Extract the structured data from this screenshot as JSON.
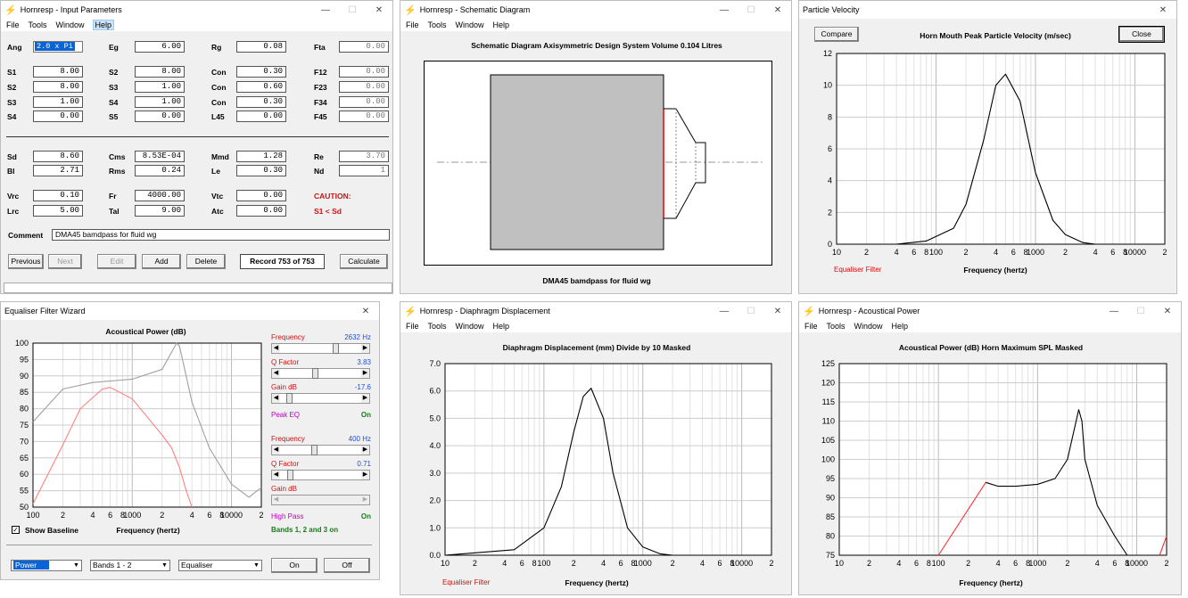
{
  "input_params": {
    "title": "Hornresp - Input Parameters",
    "menu": [
      "File",
      "Tools",
      "Window",
      "Help"
    ],
    "rows": [
      {
        "k": "Ang",
        "v": "2.0 x Pi",
        "k2": "Eg",
        "v2": "6.00",
        "k3": "Rg",
        "v3": "0.08",
        "k4": "Fta",
        "v4": "0.00"
      },
      {
        "k": "S1",
        "v": "8.00",
        "k2": "S2",
        "v2": "8.00",
        "k3": "Con",
        "v3": "0.30",
        "k4": "F12",
        "v4": "0.00"
      },
      {
        "k": "S2",
        "v": "8.00",
        "k2": "S3",
        "v2": "1.00",
        "k3": "Con",
        "v3": "0.60",
        "k4": "F23",
        "v4": "0.00"
      },
      {
        "k": "S3",
        "v": "1.00",
        "k2": "S4",
        "v2": "1.00",
        "k3": "Con",
        "v3": "0.30",
        "k4": "F34",
        "v4": "0.00"
      },
      {
        "k": "S4",
        "v": "0.00",
        "k2": "S5",
        "v2": "0.00",
        "k3": "L45",
        "v3": "0.00",
        "k4": "F45",
        "v4": "0.00"
      },
      {
        "k": "Sd",
        "v": "8.60",
        "k2": "Cms",
        "v2": "8.53E-04",
        "k3": "Mmd",
        "v3": "1.28",
        "k4": "Re",
        "v4": "3.70"
      },
      {
        "k": "Bl",
        "v": "2.71",
        "k2": "Rms",
        "v2": "0.24",
        "k3": "Le",
        "v3": "0.30",
        "k4": "Nd",
        "v4": "1"
      },
      {
        "k": "Vrc",
        "v": "0.10",
        "k2": "Fr",
        "v2": "4000.00",
        "k3": "Vtc",
        "v3": "0.00",
        "k4": "caution",
        "v4": "CAUTION:"
      },
      {
        "k": "Lrc",
        "v": "5.00",
        "k2": "Tal",
        "v2": "9.00",
        "k3": "Atc",
        "v3": "0.00",
        "k4": "caution2",
        "v4": "S1 < Sd"
      }
    ],
    "comment_label": "Comment",
    "comment": "DMA45 bamdpass for fluid wg",
    "buttons": {
      "previous": "Previous",
      "next": "Next",
      "edit": "Edit",
      "add": "Add",
      "delete": "Delete",
      "record": "Record 753 of 753",
      "calculate": "Calculate"
    }
  },
  "schematic": {
    "title": "Hornresp - Schematic Diagram",
    "menu": [
      "File",
      "Tools",
      "Window",
      "Help"
    ],
    "heading": "Schematic Diagram   Axisymmetric Design   System Volume 0.104 Litres",
    "caption": "DMA45 bamdpass for fluid wg"
  },
  "particle_velocity": {
    "title": "Particle Velocity",
    "compare": "Compare",
    "close": "Close",
    "heading": "Horn Mouth Peak Particle Velocity (m/sec)",
    "eq_label": "Equaliser Filter",
    "xlabel": "Frequency (hertz)"
  },
  "eq_wizard": {
    "title": "Equaliser Filter Wizard",
    "heading": "Acoustical Power (dB)",
    "xlabel": "Frequency (hertz)",
    "baseline_label": "Show Baseline",
    "band1": {
      "freq_label": "Frequency",
      "freq_value": "2632 Hz",
      "q_label": "Q Factor",
      "q_value": "3.83",
      "gain_label": "Gain  dB",
      "gain_value": "-17.6",
      "type": "Peak EQ",
      "state": "On"
    },
    "band2": {
      "freq_label": "Frequency",
      "freq_value": "400 Hz",
      "q_label": "Q Factor",
      "q_value": "0.71",
      "gain_label": "Gain  dB",
      "type": "High Pass",
      "state": "On"
    },
    "bands_status": "Bands 1, 2 and 3 on",
    "select1": "Power",
    "select2": "Bands 1 - 2",
    "select3": "Equaliser",
    "on": "On",
    "off": "Off"
  },
  "diaphragm": {
    "title": "Hornresp - Diaphragm Displacement",
    "menu": [
      "File",
      "Tools",
      "Window",
      "Help"
    ],
    "heading": "Diaphragm Displacement (mm)   Divide by 10   Masked",
    "eq_label": "Equaliser Filter",
    "xlabel": "Frequency (hertz)"
  },
  "acoustic": {
    "title": "Hornresp - Acoustical Power",
    "menu": [
      "File",
      "Tools",
      "Window",
      "Help"
    ],
    "heading": "Acoustical Power (dB)   Horn   Maximum SPL   Masked",
    "xlabel": "Frequency (hertz)"
  },
  "chart_data": [
    {
      "type": "line",
      "title": "Horn Mouth Peak Particle Velocity (m/sec)",
      "xlabel": "Frequency (hertz)",
      "xscale": "log",
      "xlim": [
        10,
        20000
      ],
      "ylim": [
        0,
        12
      ],
      "yticks": [
        0,
        2,
        4,
        6,
        8,
        10,
        12
      ],
      "xticklabels": [
        "10",
        "2",
        "4",
        "6",
        "8",
        "100",
        "2",
        "4",
        "6",
        "8",
        "1000",
        "2",
        "4",
        "6",
        "8",
        "10000",
        "2"
      ],
      "series": [
        {
          "x": [
            40,
            80,
            150,
            200,
            300,
            400,
            500,
            700,
            1000,
            1500,
            2000,
            3000,
            4000
          ],
          "y": [
            0,
            0.2,
            1,
            2.5,
            6.5,
            10,
            10.7,
            9,
            4.5,
            1.5,
            0.6,
            0.1,
            0
          ]
        }
      ]
    },
    {
      "type": "line",
      "title": "Acoustical Power (dB)",
      "xlabel": "Frequency (hertz)",
      "xscale": "log",
      "xlim": [
        100,
        20000
      ],
      "ylim": [
        50,
        100
      ],
      "yticks": [
        50,
        55,
        60,
        65,
        70,
        75,
        80,
        85,
        90,
        95,
        100
      ],
      "xticklabels": [
        "100",
        "2",
        "4",
        "6",
        "8",
        "1000",
        "2",
        "4",
        "6",
        "8",
        "10000",
        "2"
      ],
      "series": [
        {
          "color": "#a0a0a0",
          "x": [
            100,
            200,
            400,
            1000,
            2000,
            2800,
            3000,
            4000,
            6000,
            10000,
            15000,
            20000
          ],
          "y": [
            76,
            86,
            88,
            89,
            92,
            100,
            99,
            82,
            68,
            57,
            53,
            56
          ]
        },
        {
          "color": "#ff8080",
          "x": [
            100,
            200,
            300,
            500,
            600,
            1000,
            2000,
            2500,
            3000,
            3500,
            4000
          ],
          "y": [
            51,
            69,
            80,
            86,
            86.5,
            83,
            72,
            68,
            62,
            55,
            50
          ]
        }
      ]
    },
    {
      "type": "line",
      "title": "Diaphragm Displacement (mm)   Divide by 10   Masked",
      "xlabel": "Frequency (hertz)",
      "xscale": "log",
      "xlim": [
        10,
        20000
      ],
      "ylim": [
        0,
        7
      ],
      "yticks": [
        0,
        1,
        2,
        3,
        4,
        5,
        6,
        7
      ],
      "xticklabels": [
        "10",
        "2",
        "4",
        "6",
        "8",
        "100",
        "2",
        "4",
        "6",
        "8",
        "1000",
        "2",
        "4",
        "6",
        "8",
        "10000",
        "2"
      ],
      "series": [
        {
          "x": [
            10,
            50,
            100,
            150,
            200,
            250,
            300,
            400,
            500,
            700,
            1000,
            1500,
            2000,
            20000
          ],
          "y": [
            0,
            0.2,
            1,
            2.5,
            4.5,
            5.8,
            6.1,
            5,
            3,
            1,
            0.3,
            0.05,
            0,
            0
          ]
        }
      ]
    },
    {
      "type": "line",
      "title": "Acoustical Power (dB)   Horn   Maximum SPL   Masked",
      "xlabel": "Frequency (hertz)",
      "xscale": "log",
      "xlim": [
        10,
        20000
      ],
      "ylim": [
        75,
        125
      ],
      "yticks": [
        75,
        80,
        85,
        90,
        95,
        100,
        105,
        110,
        115,
        120,
        125
      ],
      "xticklabels": [
        "10",
        "2",
        "4",
        "6",
        "8",
        "100",
        "2",
        "4",
        "6",
        "8",
        "1000",
        "2",
        "4",
        "6",
        "8",
        "10000",
        "2"
      ],
      "series": [
        {
          "color": "#ff3030",
          "x": [
            100,
            300
          ],
          "y": [
            75,
            94
          ]
        },
        {
          "color": "#000",
          "x": [
            300,
            400,
            600,
            1000,
            1500,
            2000,
            2600,
            2800,
            3000,
            4000,
            6000,
            8000
          ],
          "y": [
            94,
            93,
            93,
            93.5,
            95,
            100,
            113,
            110,
            100,
            88,
            80,
            75
          ]
        },
        {
          "color": "#ff3030",
          "x": [
            17000,
            20000
          ],
          "y": [
            75,
            80
          ]
        }
      ]
    }
  ]
}
